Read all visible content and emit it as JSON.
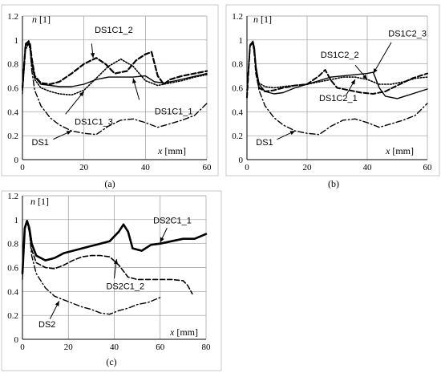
{
  "chart_data": [
    {
      "id": "a",
      "type": "line",
      "caption": "(a)",
      "ylabel_var": "n",
      "ylabel_unit": " [1]",
      "xlabel_var": "x",
      "xlabel_unit": " [mm]",
      "xlim": [
        0,
        60
      ],
      "ylim": [
        0,
        1.2
      ],
      "xticks": [
        "0",
        "20",
        "40",
        "60"
      ],
      "yticks": [
        "0",
        "0.2",
        "0.4",
        "0.6",
        "0.8",
        "1",
        "1.2"
      ],
      "grid": true,
      "series": [
        {
          "name": "DS1C1_2",
          "style": "dash",
          "width": 2.2,
          "x": [
            0,
            1,
            2,
            2.5,
            3,
            4,
            6,
            9,
            12,
            16,
            20,
            24,
            27,
            30,
            34,
            37,
            40,
            42,
            44,
            46,
            48,
            52,
            56,
            60
          ],
          "y": [
            0.6,
            0.95,
            0.99,
            0.96,
            0.85,
            0.7,
            0.64,
            0.63,
            0.65,
            0.72,
            0.8,
            0.85,
            0.8,
            0.72,
            0.74,
            0.83,
            0.88,
            0.9,
            0.7,
            0.63,
            0.67,
            0.7,
            0.72,
            0.74
          ]
        },
        {
          "name": "DS1C1_1",
          "style": "solid",
          "width": 1.4,
          "x": [
            0,
            1,
            2,
            2.5,
            3,
            4,
            6,
            9,
            12,
            16,
            20,
            24,
            28,
            32,
            36,
            40,
            43,
            46,
            50,
            55,
            60
          ],
          "y": [
            0.6,
            0.97,
            0.99,
            0.95,
            0.82,
            0.69,
            0.63,
            0.62,
            0.61,
            0.61,
            0.63,
            0.67,
            0.69,
            0.69,
            0.69,
            0.7,
            0.65,
            0.64,
            0.66,
            0.69,
            0.72
          ]
        },
        {
          "name": "DS1C1_3",
          "style": "dot",
          "width": 1.6,
          "x": [
            0,
            1,
            2,
            2.5,
            3,
            4,
            6,
            9,
            12,
            16,
            20,
            24,
            28,
            32,
            36,
            40,
            44,
            48,
            52,
            56,
            60
          ],
          "y": [
            0.58,
            0.92,
            0.97,
            0.92,
            0.8,
            0.67,
            0.6,
            0.57,
            0.55,
            0.54,
            0.58,
            0.68,
            0.78,
            0.84,
            0.78,
            0.66,
            0.62,
            0.64,
            0.66,
            0.69,
            0.71
          ]
        },
        {
          "name": "DS1",
          "style": "dashdot",
          "width": 1.4,
          "x": [
            0,
            1,
            2,
            2.5,
            3,
            4,
            6,
            9,
            12,
            16,
            20,
            24,
            28,
            32,
            36,
            40,
            44,
            48,
            52,
            56,
            60
          ],
          "y": [
            0.55,
            0.95,
            0.99,
            0.93,
            0.75,
            0.58,
            0.45,
            0.35,
            0.29,
            0.24,
            0.22,
            0.21,
            0.28,
            0.33,
            0.34,
            0.31,
            0.27,
            0.3,
            0.33,
            0.37,
            0.47
          ]
        }
      ],
      "labels": [
        {
          "text": "DS1C1_2",
          "x": 23.5,
          "y": 1.06,
          "lx1": 22.5,
          "ly1": 0.97,
          "lx2": 23,
          "ly2": 0.85
        },
        {
          "text": "DS1C1_1",
          "x": 43,
          "y": 0.38,
          "lx1": 38,
          "ly1": 0.5,
          "lx2": 36,
          "ly2": 0.68
        },
        {
          "text": "DS1C1_3",
          "x": 17,
          "y": 0.29,
          "lx1": 14,
          "ly1": 0.38,
          "lx2": 20,
          "ly2": 0.57
        },
        {
          "text": "DS1",
          "x": 3,
          "y": 0.12,
          "lx1": 10,
          "ly1": 0.17,
          "lx2": 16,
          "ly2": 0.24
        }
      ]
    },
    {
      "id": "b",
      "type": "line",
      "caption": "(b)",
      "ylabel_var": "n",
      "ylabel_unit": " [1]",
      "xlabel_var": "x",
      "xlabel_unit": " [mm]",
      "xlim": [
        0,
        60
      ],
      "ylim": [
        0,
        1.2
      ],
      "xticks": [
        "0",
        "20",
        "40",
        "60"
      ],
      "yticks": [
        "0",
        "0.2",
        "0.4",
        "0.6",
        "0.8",
        "1",
        "1.2"
      ],
      "grid": true,
      "series": [
        {
          "name": "DS1C2_3",
          "style": "solid",
          "width": 1.4,
          "x": [
            0,
            1,
            2,
            2.5,
            3,
            4,
            6,
            9,
            12,
            16,
            20,
            24,
            28,
            32,
            36,
            40,
            42,
            44,
            46,
            50,
            55,
            60
          ],
          "y": [
            0.55,
            0.96,
            0.99,
            0.93,
            0.78,
            0.63,
            0.57,
            0.55,
            0.56,
            0.6,
            0.63,
            0.66,
            0.69,
            0.7,
            0.71,
            0.72,
            0.73,
            0.6,
            0.53,
            0.51,
            0.55,
            0.59
          ]
        },
        {
          "name": "DS1C2_2",
          "style": "dot",
          "width": 1.6,
          "x": [
            0,
            1,
            2,
            2.5,
            3,
            4,
            6,
            9,
            12,
            16,
            20,
            24,
            28,
            32,
            36,
            40,
            44,
            48,
            52,
            56,
            60
          ],
          "y": [
            0.58,
            0.95,
            0.98,
            0.9,
            0.75,
            0.64,
            0.61,
            0.6,
            0.61,
            0.62,
            0.63,
            0.65,
            0.67,
            0.69,
            0.69,
            0.67,
            0.63,
            0.63,
            0.65,
            0.68,
            0.69
          ]
        },
        {
          "name": "DS1C2_1",
          "style": "dash",
          "width": 2.0,
          "x": [
            0,
            1,
            2,
            2.5,
            3,
            4,
            6,
            9,
            12,
            16,
            20,
            24,
            26,
            28,
            30,
            34,
            38,
            42,
            46,
            50,
            55,
            60
          ],
          "y": [
            0.52,
            0.95,
            0.98,
            0.88,
            0.72,
            0.6,
            0.57,
            0.58,
            0.6,
            0.62,
            0.63,
            0.7,
            0.75,
            0.66,
            0.6,
            0.58,
            0.56,
            0.55,
            0.57,
            0.62,
            0.68,
            0.72
          ]
        },
        {
          "name": "DS1",
          "style": "dashdot",
          "width": 1.4,
          "x": [
            0,
            1,
            2,
            2.5,
            3,
            4,
            6,
            9,
            12,
            16,
            20,
            24,
            28,
            32,
            36,
            40,
            44,
            48,
            52,
            56,
            60
          ],
          "y": [
            0.55,
            0.95,
            0.99,
            0.93,
            0.75,
            0.58,
            0.45,
            0.35,
            0.29,
            0.24,
            0.22,
            0.21,
            0.28,
            0.33,
            0.34,
            0.31,
            0.27,
            0.3,
            0.33,
            0.37,
            0.47
          ]
        }
      ],
      "labels": [
        {
          "text": "DS1C2_3",
          "x": 47,
          "y": 1.03,
          "lx1": 48,
          "ly1": 0.98,
          "lx2": 42,
          "ly2": 0.72
        },
        {
          "text": "DS1C2_2",
          "x": 24.5,
          "y": 0.85,
          "lx1": 36,
          "ly1": 0.79,
          "lx2": 40,
          "ly2": 0.67
        },
        {
          "text": "DS1C2_1",
          "x": 24,
          "y": 0.49,
          "lx1": 33,
          "ly1": 0.54,
          "lx2": 36,
          "ly2": 0.67
        },
        {
          "text": "DS1",
          "x": 3,
          "y": 0.12,
          "lx1": 10,
          "ly1": 0.17,
          "lx2": 16,
          "ly2": 0.24
        }
      ]
    },
    {
      "id": "c",
      "type": "line",
      "caption": "(c)",
      "ylabel_var": "n",
      "ylabel_unit": " [1]",
      "xlabel_var": "x",
      "xlabel_unit": " [mm]",
      "xlim": [
        0,
        80
      ],
      "ylim": [
        0,
        1.2
      ],
      "xticks": [
        "0",
        "20",
        "40",
        "60",
        "80"
      ],
      "yticks": [
        "0",
        "0.2",
        "0.4",
        "0.6",
        "0.8",
        "1",
        "1.2"
      ],
      "grid": true,
      "series": [
        {
          "name": "DS2C1_1",
          "style": "solid",
          "width": 2.6,
          "x": [
            0,
            1,
            2,
            3,
            4,
            6,
            10,
            14,
            18,
            22,
            26,
            30,
            34,
            38,
            42,
            44,
            46,
            48,
            52,
            56,
            60,
            65,
            70,
            75,
            80
          ],
          "y": [
            0.55,
            0.93,
            0.99,
            0.93,
            0.8,
            0.7,
            0.66,
            0.68,
            0.72,
            0.74,
            0.76,
            0.78,
            0.8,
            0.82,
            0.9,
            0.96,
            0.9,
            0.76,
            0.74,
            0.79,
            0.8,
            0.82,
            0.84,
            0.84,
            0.88
          ]
        },
        {
          "name": "DS2C1_2",
          "style": "dash",
          "width": 1.6,
          "x": [
            0,
            1,
            2,
            3,
            4,
            6,
            10,
            14,
            18,
            22,
            26,
            30,
            34,
            38,
            42,
            46,
            50,
            55,
            60,
            65,
            70,
            72,
            74
          ],
          "y": [
            0.55,
            0.92,
            0.98,
            0.9,
            0.75,
            0.64,
            0.6,
            0.59,
            0.62,
            0.66,
            0.69,
            0.7,
            0.7,
            0.69,
            0.62,
            0.52,
            0.5,
            0.5,
            0.5,
            0.5,
            0.49,
            0.45,
            0.38
          ]
        },
        {
          "name": "DS2",
          "style": "dashdot",
          "width": 1.4,
          "x": [
            0,
            1,
            2,
            3,
            4,
            6,
            10,
            14,
            18,
            22,
            26,
            30,
            34,
            38,
            42,
            46,
            50,
            55,
            60
          ],
          "y": [
            0.5,
            0.93,
            0.99,
            0.9,
            0.7,
            0.55,
            0.43,
            0.36,
            0.33,
            0.3,
            0.27,
            0.25,
            0.22,
            0.21,
            0.24,
            0.26,
            0.29,
            0.31,
            0.35
          ]
        }
      ],
      "labels": [
        {
          "text": "DS2C1_1",
          "x": 57,
          "y": 0.97,
          "lx1": 63,
          "ly1": 0.93,
          "lx2": 60,
          "ly2": 0.81
        },
        {
          "text": "DS2C1_2",
          "x": 36.5,
          "y": 0.42,
          "lx1": 40,
          "ly1": 0.51,
          "lx2": 41,
          "ly2": 0.67
        },
        {
          "text": "DS2",
          "x": 7,
          "y": 0.1,
          "lx1": 12,
          "ly1": 0.17,
          "lx2": 16,
          "ly2": 0.32
        }
      ]
    }
  ]
}
